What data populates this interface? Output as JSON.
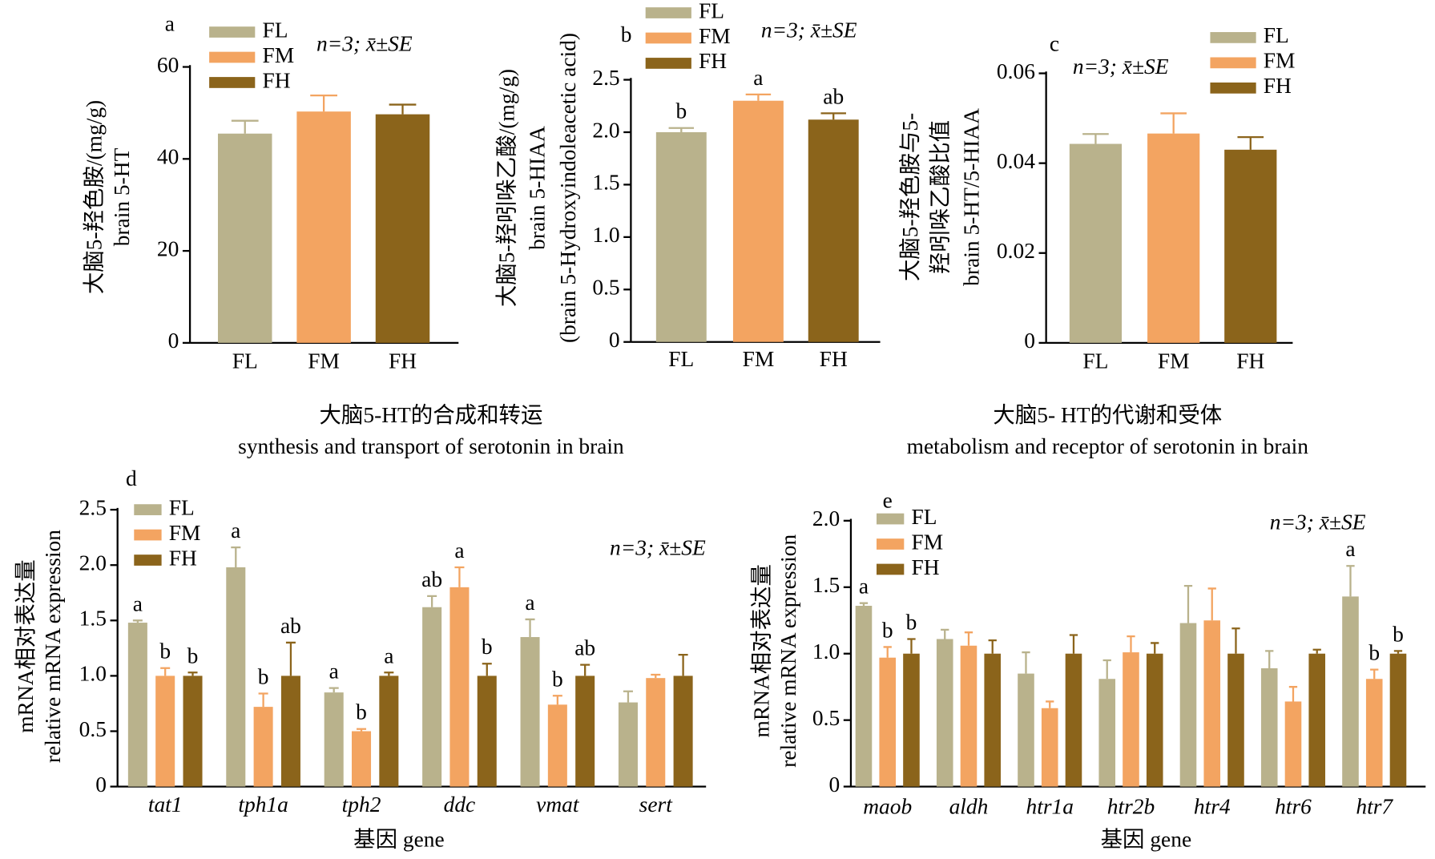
{
  "chart_data": [
    {
      "type": "bar",
      "letter": "a",
      "annotation": "n=3; x̄±SE",
      "ylabel": [
        "大脑5-羟色胺/(mg/g)",
        "brain 5-HT"
      ],
      "categories": [
        "FL",
        "FM",
        "FH"
      ],
      "ylim": [
        0,
        60
      ],
      "yticks": [
        0,
        20,
        40,
        60
      ],
      "series": [
        {
          "name": "FL",
          "color": "#b9b28c",
          "values": [
            45.5,
            null,
            null
          ],
          "errors": [
            2.8,
            null,
            null
          ]
        },
        {
          "name": "FM",
          "color": "#f3a461",
          "values": [
            null,
            50.3,
            null
          ],
          "errors": [
            null,
            3.5,
            null
          ]
        },
        {
          "name": "FH",
          "color": "#8b641b",
          "values": [
            null,
            null,
            49.7
          ],
          "errors": [
            null,
            null,
            2.1
          ]
        }
      ]
    },
    {
      "type": "bar",
      "letter": "b",
      "annotation": "n=3; x̄±SE",
      "ylabel": [
        "大脑5-羟吲哚乙酸/(mg/g)",
        "brain 5-HIAA",
        "(brain 5-Hydroxyindoleacetic acid)"
      ],
      "categories": [
        "FL",
        "FM",
        "FH"
      ],
      "ylim": [
        0,
        2.5
      ],
      "yticks": [
        0,
        0.5,
        {
          "value": 1,
          "label": "1.0"
        },
        1.5,
        {
          "value": 2,
          "label": "2.0"
        },
        2.5
      ],
      "series": [
        {
          "name": "FL",
          "color": "#b9b28c",
          "values": [
            2.0,
            null,
            null
          ],
          "errors": [
            0.04,
            null,
            null
          ],
          "letters": [
            "b",
            null,
            null
          ]
        },
        {
          "name": "FM",
          "color": "#f3a461",
          "values": [
            null,
            2.3,
            null
          ],
          "errors": [
            null,
            0.06,
            null
          ],
          "letters": [
            null,
            "a",
            null
          ]
        },
        {
          "name": "FH",
          "color": "#8b641b",
          "values": [
            null,
            null,
            2.12
          ],
          "errors": [
            null,
            null,
            0.06
          ],
          "letters": [
            null,
            null,
            "ab"
          ]
        }
      ]
    },
    {
      "type": "bar",
      "letter": "c",
      "annotation": "n=3; x̄±SE",
      "ylabel": [
        "大脑5-羟色胺与5-",
        "羟吲哚乙酸比值",
        "brain 5-HT/5-HIAA"
      ],
      "categories": [
        "FL",
        "FM",
        "FH"
      ],
      "ylim": [
        0,
        0.06
      ],
      "yticks": [
        0,
        0.02,
        0.04,
        0.06
      ],
      "series": [
        {
          "name": "FL",
          "color": "#b9b28c",
          "values": [
            0.0443,
            null,
            null
          ],
          "errors": [
            0.0022,
            null,
            null
          ]
        },
        {
          "name": "FM",
          "color": "#f3a461",
          "values": [
            null,
            0.0466,
            null
          ],
          "errors": [
            null,
            0.0045,
            null
          ]
        },
        {
          "name": "FH",
          "color": "#8b641b",
          "values": [
            null,
            null,
            0.043
          ],
          "errors": [
            null,
            null,
            0.0028
          ]
        }
      ]
    },
    {
      "type": "bar",
      "letter": "d",
      "annotation": "n=3; x̄±SE",
      "section_title": [
        "大脑5-HT的合成和转运",
        "synthesis and transport of serotonin in brain"
      ],
      "ylabel": [
        "mRNA相对表达量",
        "relative mRNA expression"
      ],
      "xlabel": "基因 gene",
      "categories": [
        "tat1",
        "tph1a",
        "tph2",
        "ddc",
        "vmat",
        "sert"
      ],
      "ylim": [
        0,
        2.5
      ],
      "yticks": [
        0,
        0.5,
        {
          "value": 1,
          "label": "1.0"
        },
        1.5,
        {
          "value": 2,
          "label": "2.0"
        },
        2.5
      ],
      "series": [
        {
          "name": "FL",
          "color": "#b9b28c",
          "values": [
            1.48,
            1.98,
            0.85,
            1.62,
            1.35,
            0.76
          ],
          "errors": [
            0.02,
            0.18,
            0.04,
            0.1,
            0.16,
            0.1
          ],
          "letters": [
            "a",
            "a",
            "a",
            "ab",
            "a",
            null
          ]
        },
        {
          "name": "FM",
          "color": "#f3a461",
          "values": [
            1.0,
            0.72,
            0.5,
            1.8,
            0.74,
            0.98
          ],
          "errors": [
            0.07,
            0.12,
            0.02,
            0.18,
            0.08,
            0.03
          ],
          "letters": [
            "b",
            "b",
            "b",
            "a",
            "b",
            null
          ]
        },
        {
          "name": "FH",
          "color": "#8b641b",
          "values": [
            1.0,
            1.0,
            1.0,
            1.0,
            1.0,
            1.0
          ],
          "errors": [
            0.03,
            0.3,
            0.03,
            0.11,
            0.1,
            0.19
          ],
          "letters": [
            "b",
            "ab",
            "a",
            "b",
            "ab",
            null
          ]
        }
      ]
    },
    {
      "type": "bar",
      "letter": "e",
      "annotation": "n=3; x̄±SE",
      "section_title": [
        "大脑5- HT的代谢和受体",
        "metabolism and receptor of serotonin in brain"
      ],
      "ylabel": [
        "mRNA相对表达量",
        "relative mRNA expression"
      ],
      "xlabel": "基因 gene",
      "categories": [
        "maob",
        "aldh",
        "htr1a",
        "htr2b",
        "htr4",
        "htr6",
        "htr7"
      ],
      "ylim": [
        0,
        2.0
      ],
      "yticks": [
        0,
        0.5,
        {
          "value": 1,
          "label": "1.0"
        },
        1.5,
        {
          "value": 2,
          "label": "2.0"
        }
      ],
      "series": [
        {
          "name": "FL",
          "color": "#b9b28c",
          "values": [
            1.36,
            1.11,
            0.85,
            0.81,
            1.23,
            0.89,
            1.43
          ],
          "errors": [
            0.02,
            0.07,
            0.16,
            0.14,
            0.28,
            0.13,
            0.23
          ],
          "letters": [
            "a",
            null,
            null,
            null,
            null,
            null,
            "a"
          ]
        },
        {
          "name": "FM",
          "color": "#f3a461",
          "values": [
            0.97,
            1.06,
            0.59,
            1.01,
            1.25,
            0.64,
            0.81
          ],
          "errors": [
            0.08,
            0.1,
            0.05,
            0.12,
            0.24,
            0.11,
            0.07
          ],
          "letters": [
            "b",
            null,
            null,
            null,
            null,
            null,
            "b"
          ]
        },
        {
          "name": "FH",
          "color": "#8b641b",
          "values": [
            1.0,
            1.0,
            1.0,
            1.0,
            1.0,
            1.0,
            1.0
          ],
          "errors": [
            0.11,
            0.1,
            0.14,
            0.08,
            0.19,
            0.03,
            0.02
          ],
          "letters": [
            "b",
            null,
            null,
            null,
            null,
            null,
            "b"
          ]
        }
      ]
    }
  ]
}
